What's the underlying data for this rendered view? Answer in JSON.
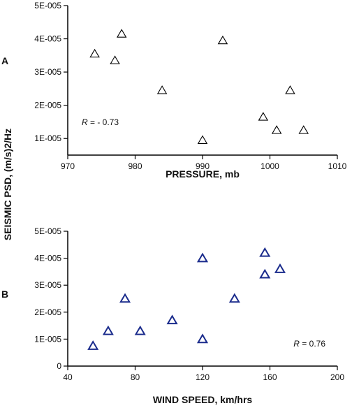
{
  "shared": {
    "ylabel": "SEISMIC PSD, (m/s)2/Hz"
  },
  "chart_data": [
    {
      "type": "scatter",
      "panel_label": "A",
      "xlabel": "PRESSURE, mb",
      "ylabel": "SEISMIC PSD, (m/s)2/Hz",
      "xlim": [
        970,
        1010
      ],
      "ylim": [
        5e-06,
        5e-05
      ],
      "x_ticks": [
        970,
        980,
        990,
        1000,
        1010
      ],
      "x_tick_labels": [
        "970",
        "980",
        "990",
        "1000",
        "1010"
      ],
      "y_ticks": [
        1e-05,
        2e-05,
        3e-05,
        4e-05,
        5e-05
      ],
      "y_tick_labels": [
        "1E-005",
        "2E-005",
        "3E-005",
        "4E-005",
        "5E-005"
      ],
      "marker": "open-triangle",
      "marker_color": "#000000",
      "r_text": "- 0.73",
      "r_position": "bottom-left",
      "points": [
        {
          "x": 974,
          "y": 3.55e-05
        },
        {
          "x": 977,
          "y": 3.35e-05
        },
        {
          "x": 978,
          "y": 4.15e-05
        },
        {
          "x": 984,
          "y": 2.45e-05
        },
        {
          "x": 990,
          "y": 9.5e-06
        },
        {
          "x": 993,
          "y": 3.95e-05
        },
        {
          "x": 999,
          "y": 1.65e-05
        },
        {
          "x": 1001,
          "y": 1.25e-05
        },
        {
          "x": 1003,
          "y": 2.45e-05
        },
        {
          "x": 1005,
          "y": 1.25e-05
        }
      ]
    },
    {
      "type": "scatter",
      "panel_label": "B",
      "xlabel": "WIND SPEED, km/hrs",
      "ylabel": "SEISMIC PSD, (m/s)2/Hz",
      "xlim": [
        40,
        200
      ],
      "ylim": [
        0,
        5e-05
      ],
      "x_ticks": [
        40,
        80,
        120,
        160,
        200
      ],
      "x_tick_labels": [
        "40",
        "80",
        "120",
        "160",
        "200"
      ],
      "y_ticks": [
        0,
        1e-05,
        2e-05,
        3e-05,
        4e-05,
        5e-05
      ],
      "y_tick_labels": [
        "0",
        "1E-005",
        "2E-005",
        "3E-005",
        "4E-005",
        "5E-005"
      ],
      "marker": "open-triangle",
      "marker_color": "#1a2b8c",
      "r_text": "0.76",
      "r_position": "bottom-right",
      "points": [
        {
          "x": 55,
          "y": 7.5e-06
        },
        {
          "x": 64,
          "y": 1.3e-05
        },
        {
          "x": 74,
          "y": 2.5e-05
        },
        {
          "x": 83,
          "y": 1.3e-05
        },
        {
          "x": 102,
          "y": 1.7e-05
        },
        {
          "x": 120,
          "y": 4e-05
        },
        {
          "x": 120,
          "y": 1e-05
        },
        {
          "x": 139,
          "y": 2.5e-05
        },
        {
          "x": 157,
          "y": 4.2e-05
        },
        {
          "x": 157,
          "y": 3.4e-05
        },
        {
          "x": 166,
          "y": 3.6e-05
        }
      ]
    }
  ]
}
